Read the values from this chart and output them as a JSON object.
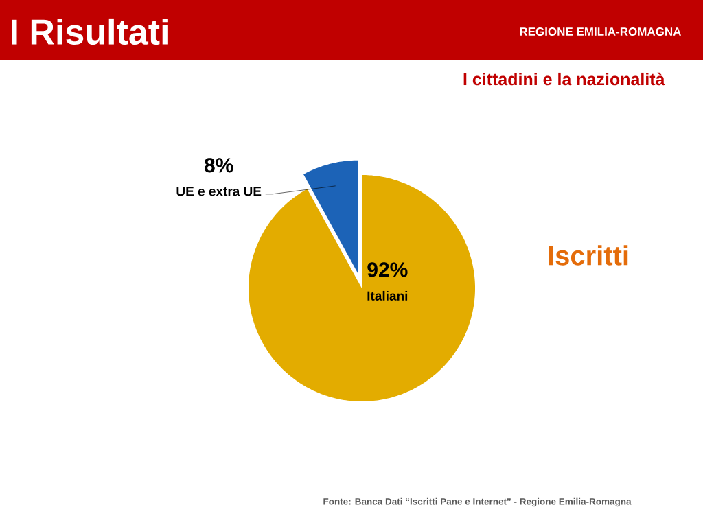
{
  "chart_data": {
    "type": "pie",
    "title": "I Risultati",
    "subtitle": "I cittadini e la nazionalità",
    "categories": [
      "Italiani",
      "UE e extra UE"
    ],
    "values": [
      92,
      8
    ],
    "colors": [
      "#e3ac00",
      "#1c63b7"
    ],
    "value_labels": [
      "92%",
      "8%"
    ],
    "annotations": [
      "Iscritti",
      "Fonte: Banca Dati “Iscritti Pane e Internet” - Regione Emilia-Romagna",
      "REGIONE EMILIA-ROMAGNA"
    ]
  }
}
